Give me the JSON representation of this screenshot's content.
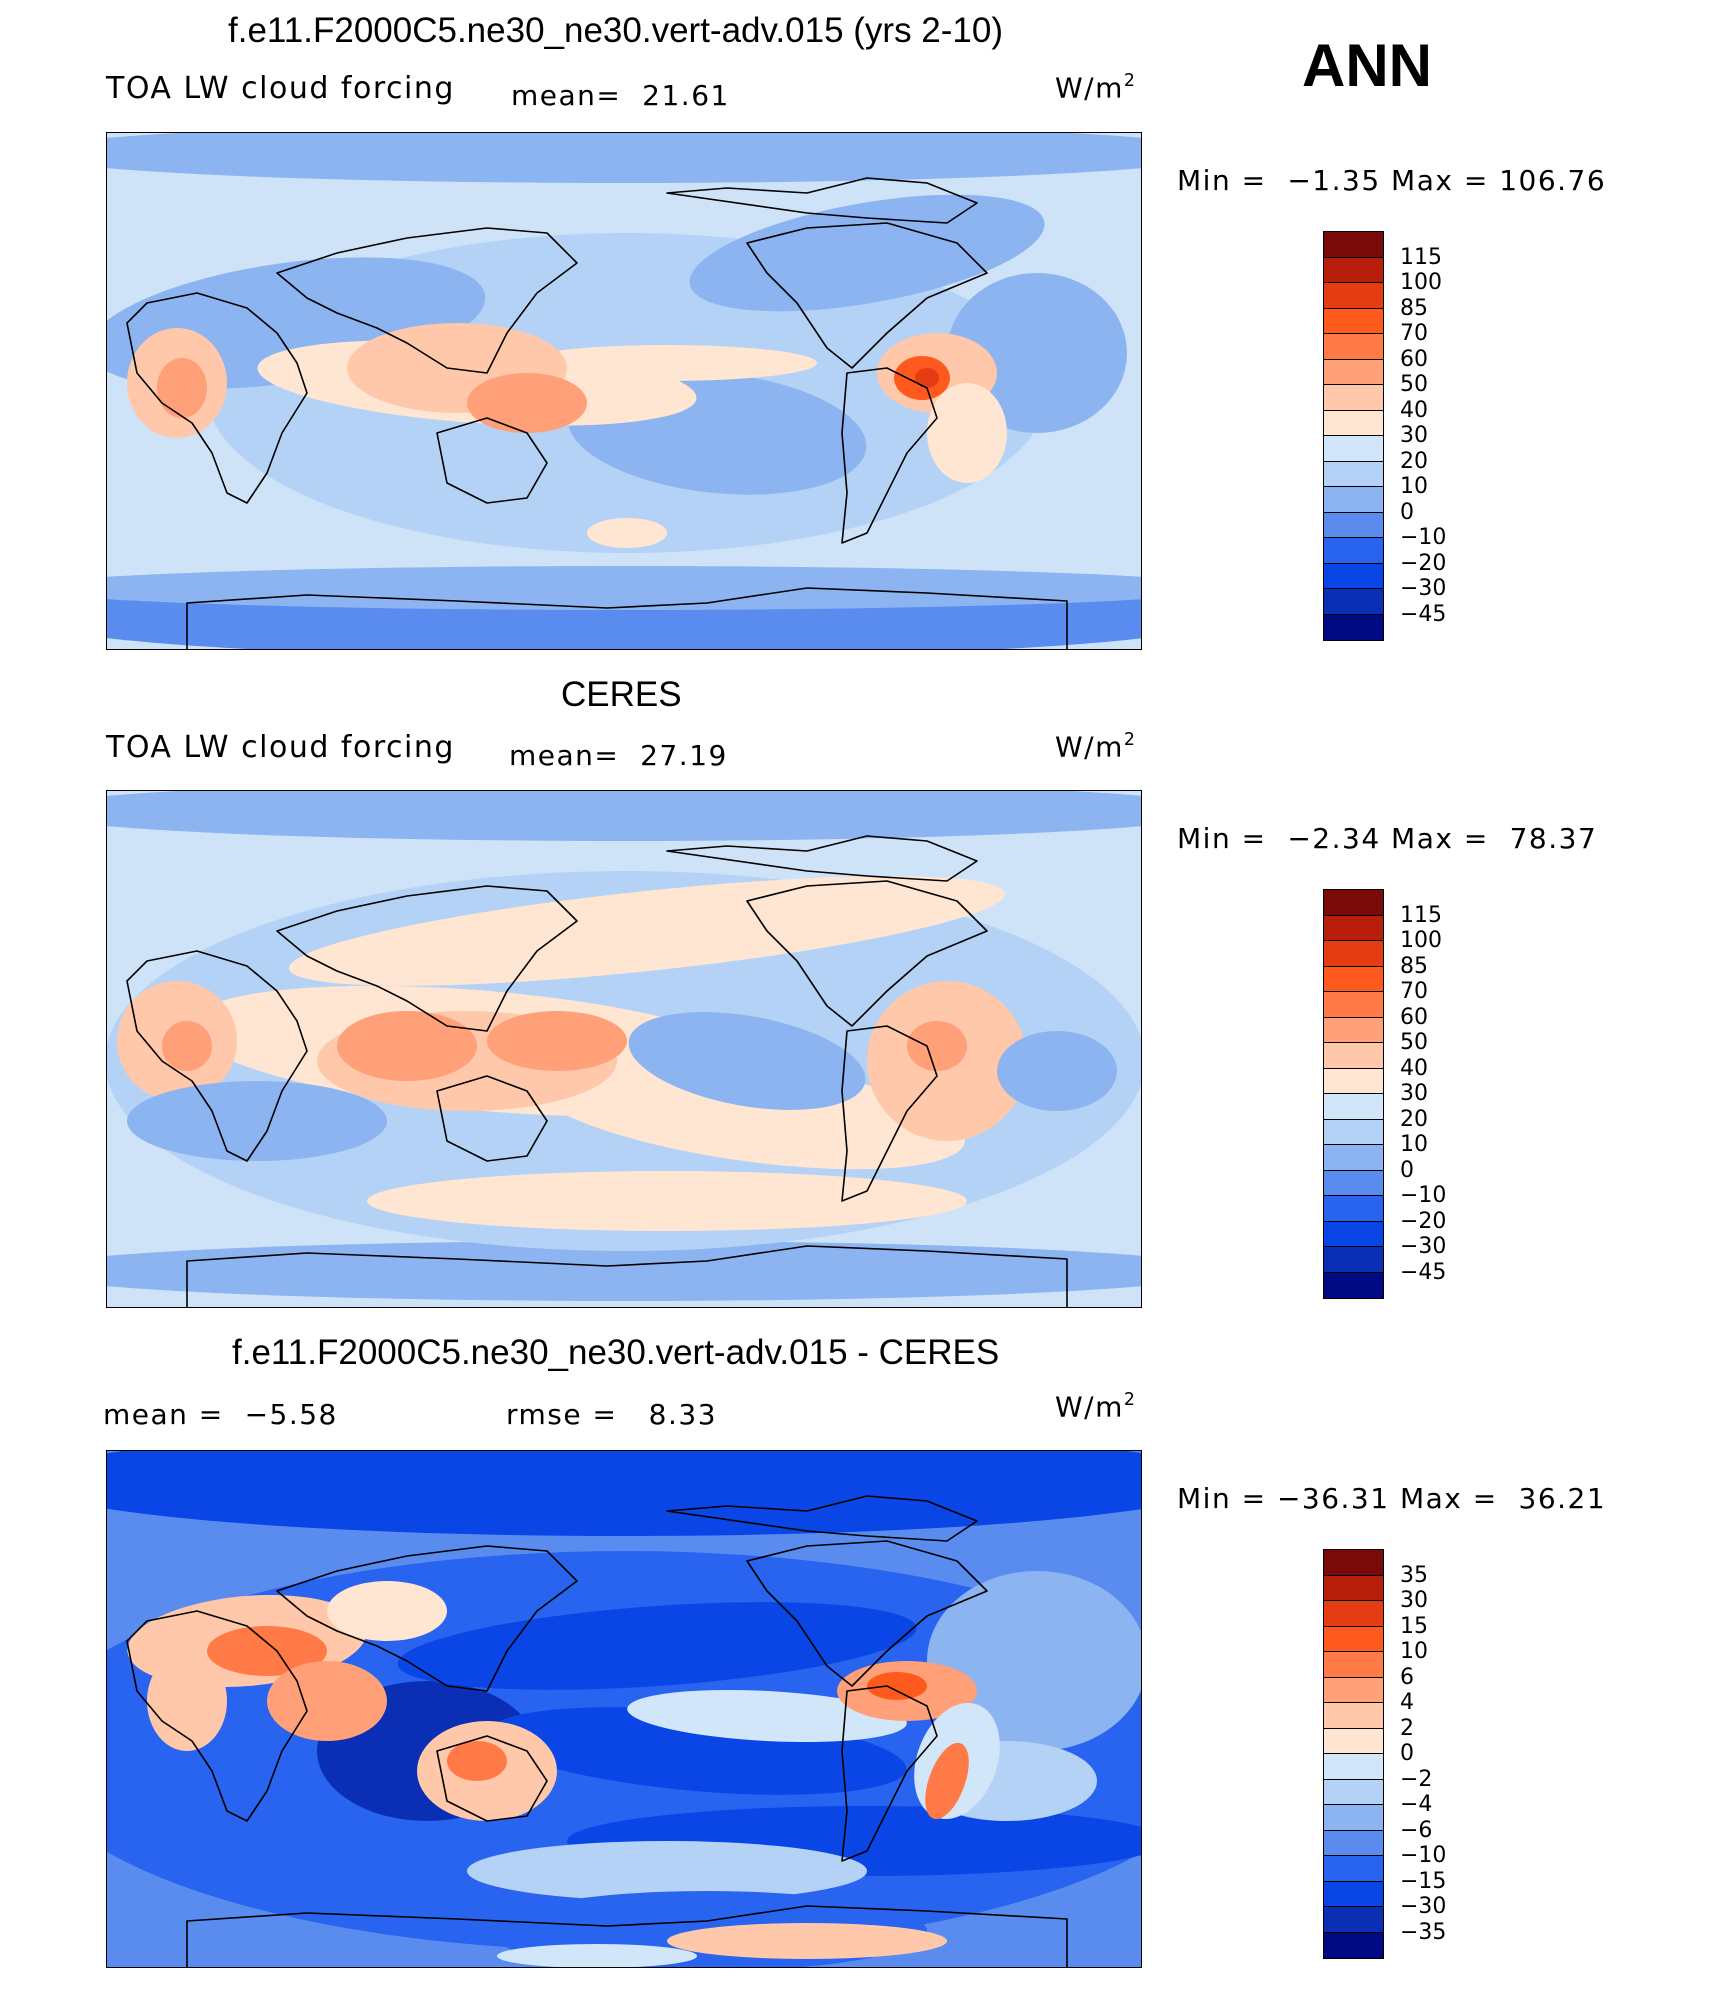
{
  "header": {
    "season": "ANN"
  },
  "panels": [
    {
      "id": "model",
      "title": "f.e11.F2000C5.ne30_ne30.vert-adv.015 (yrs 2-10)",
      "left_label": "TOA LW cloud forcing",
      "mid_label": "mean=  21.61",
      "units": "W/m",
      "units_sup": "2",
      "min_max": "Min =  −1.35 Max = 106.76",
      "levels": [
        "115",
        "100",
        "85",
        "70",
        "60",
        "50",
        "40",
        "30",
        "20",
        "10",
        "0",
        "−10",
        "−20",
        "−30",
        "−45"
      ]
    },
    {
      "id": "obs",
      "title": "CERES",
      "left_label": "TOA LW cloud forcing",
      "mid_label": "mean=  27.19",
      "units": "W/m",
      "units_sup": "2",
      "min_max": "Min =  −2.34 Max =  78.37",
      "levels": [
        "115",
        "100",
        "85",
        "70",
        "60",
        "50",
        "40",
        "30",
        "20",
        "10",
        "0",
        "−10",
        "−20",
        "−30",
        "−45"
      ]
    },
    {
      "id": "diff",
      "title": "f.e11.F2000C5.ne30_ne30.vert-adv.015 - CERES",
      "left_label": "mean =  −5.58",
      "mid_label": "rmse =   8.33",
      "units": "W/m",
      "units_sup": "2",
      "min_max": "Min = −36.31 Max =  36.21",
      "levels": [
        "35",
        "30",
        "15",
        "10",
        "6",
        "4",
        "2",
        "0",
        "−2",
        "−4",
        "−6",
        "−10",
        "−15",
        "−30",
        "−35"
      ]
    }
  ],
  "colors": {
    "palette": [
      "#7a0a0a",
      "#b81e0c",
      "#e63c14",
      "#ff5a1e",
      "#ff7a46",
      "#ffa078",
      "#ffc8aa",
      "#ffe6d2",
      "#d2e6fa",
      "#b4d2f5",
      "#8cb4f0",
      "#5a8cf0",
      "#2864f0",
      "#0a46e6",
      "#0a2fb4",
      "#000a82"
    ],
    "ocean_bg": "#cfe3f8"
  }
}
